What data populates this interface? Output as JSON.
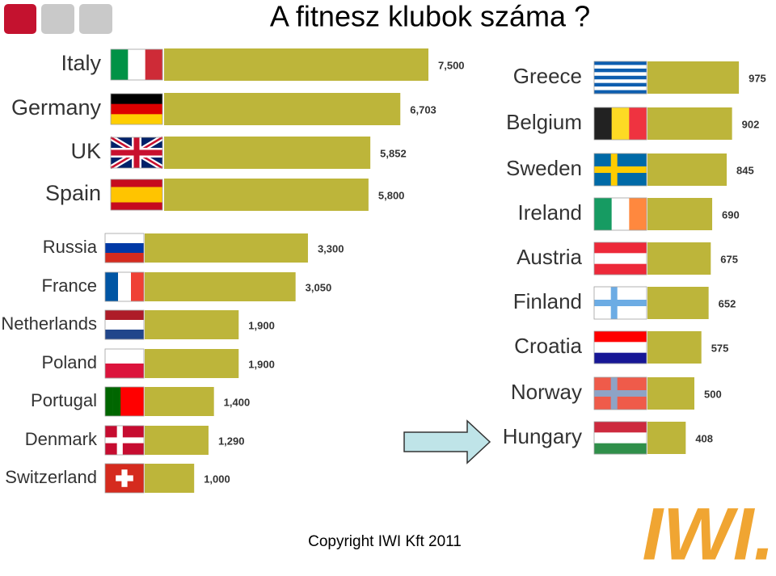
{
  "title": "A fitnesz klubok száma ?",
  "copyright": "Copyright IWI Kft 2011",
  "logo": "IWI.",
  "chart_data": [
    {
      "type": "bar",
      "color": "#bdb53a",
      "categories": [
        "Italy",
        "Germany",
        "UK",
        "Spain"
      ],
      "values": [
        7500,
        6703,
        5852,
        5800
      ],
      "value_labels": [
        "7,500",
        "6,703",
        "5,852",
        "5,800"
      ]
    },
    {
      "type": "bar",
      "color": "#bdb53a",
      "categories": [
        "Russia",
        "France",
        "Netherlands",
        "Poland",
        "Portugal",
        "Denmark",
        "Switzerland"
      ],
      "values": [
        3300,
        3050,
        1900,
        1900,
        1400,
        1290,
        1000
      ],
      "value_labels": [
        "3,300",
        "3,050",
        "1,900",
        "1,900",
        "1,400",
        "1,290",
        "1,000"
      ]
    },
    {
      "type": "bar",
      "color": "#bdb53a",
      "categories": [
        "Greece",
        "Belgium",
        "Sweden",
        "Ireland",
        "Austria",
        "Finland",
        "Croatia",
        "Norway",
        "Hungary"
      ],
      "values": [
        975,
        902,
        845,
        690,
        675,
        652,
        575,
        500,
        408
      ]
    }
  ]
}
